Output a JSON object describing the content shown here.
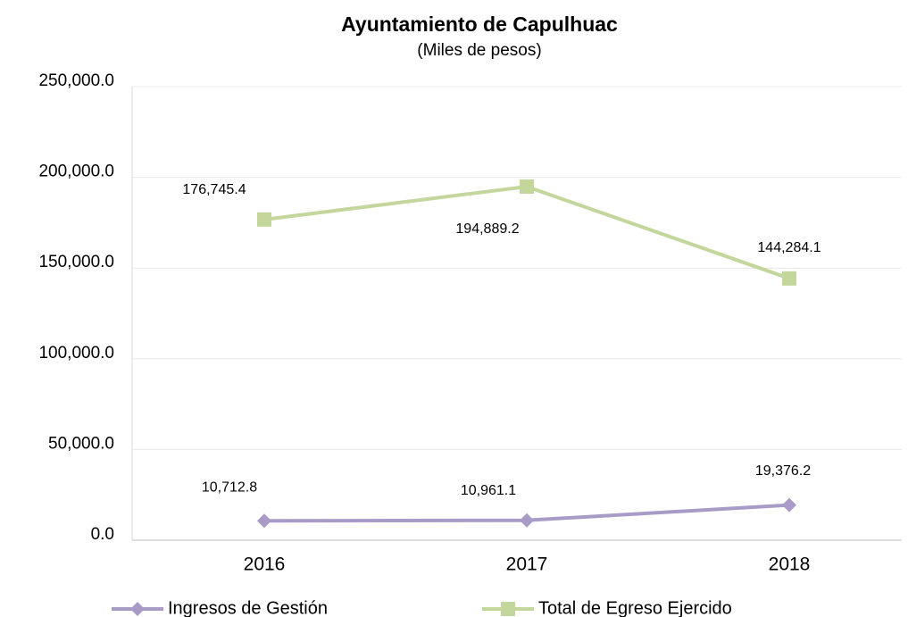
{
  "chart_data": {
    "type": "line",
    "title": "Ayuntamiento de Capulhuac",
    "subtitle": "(Miles de pesos)",
    "categories": [
      "2016",
      "2017",
      "2018"
    ],
    "series": [
      {
        "name": "Ingresos de Gestión",
        "color": "#a99bc8",
        "marker": "diamond",
        "values": [
          10712.8,
          10961.1,
          19376.2
        ],
        "value_labels": [
          "10,712.8",
          "10,961.1",
          "19,376.2"
        ]
      },
      {
        "name": "Total de Egreso Ejercido",
        "color": "#c3d69b",
        "marker": "square",
        "values": [
          176745.4,
          194889.2,
          144284.1
        ],
        "value_labels": [
          "176,745.4",
          "194,889.2",
          "144,284.1"
        ]
      }
    ],
    "ylim": [
      0,
      250000
    ],
    "yticks": [
      {
        "value": 0,
        "label": "0.0"
      },
      {
        "value": 50000,
        "label": "50,000.0"
      },
      {
        "value": 100000,
        "label": "100,000.0"
      },
      {
        "value": 150000,
        "label": "150,000.0"
      },
      {
        "value": 200000,
        "label": "200,000.0"
      },
      {
        "value": 250000,
        "label": "250,000.0"
      }
    ],
    "grid": true,
    "legend": "bottom"
  }
}
